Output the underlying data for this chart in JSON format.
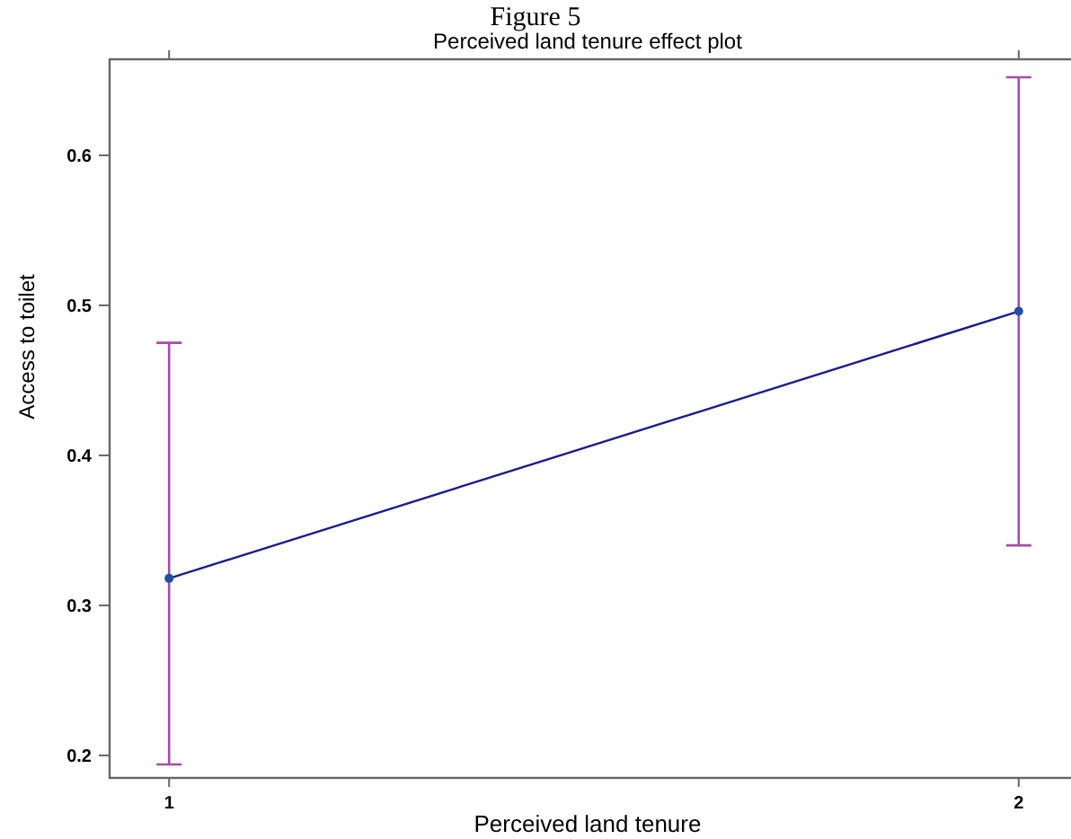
{
  "chart_data": {
    "type": "line",
    "title": "Figure 5",
    "subtitle": "Perceived land tenure effect plot",
    "xlabel": "Perceived land tenure",
    "ylabel": "Access to toilet",
    "x": [
      1,
      2
    ],
    "xlim": [
      0.93,
      2.07
    ],
    "xticks": [
      1,
      2
    ],
    "ylim": [
      0.185,
      0.664
    ],
    "yticks": [
      0.2,
      0.3,
      0.4,
      0.5,
      0.6
    ],
    "series": [
      {
        "color": "#1c1c8a",
        "values": [
          0.318,
          0.496
        ],
        "errors": [
          [
            0.194,
            0.475
          ],
          [
            0.34,
            0.652
          ]
        ]
      }
    ],
    "marker": "circle",
    "line_style": "solid",
    "grid": false
  }
}
